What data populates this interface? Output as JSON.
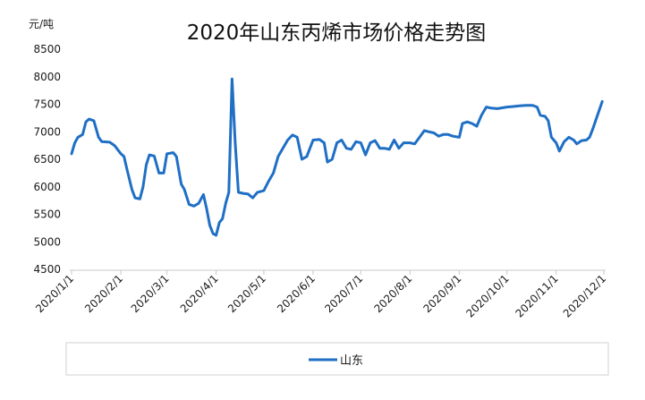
{
  "chart_data": {
    "type": "line",
    "title": "2020年山东丙烯市场价格走势图",
    "ylabel": "元/吨",
    "xlabel": "",
    "ylim": [
      4500,
      8500
    ],
    "yticks": [
      4500,
      5000,
      5500,
      6000,
      6500,
      7000,
      7500,
      8000,
      8500
    ],
    "xlim": [
      "2020-01-01",
      "2020-12-01"
    ],
    "x_tick_dates": [
      "2020-01-01",
      "2020-02-01",
      "2020-03-01",
      "2020-04-01",
      "2020-05-01",
      "2020-06-01",
      "2020-07-01",
      "2020-08-01",
      "2020-09-01",
      "2020-10-01",
      "2020-11-01",
      "2020-12-01"
    ],
    "x_tick_labels": [
      "2020/1/1",
      "2020/2/1",
      "2020/3/1",
      "2020/4/1",
      "2020/5/1",
      "2020/6/1",
      "2020/7/1",
      "2020/8/1",
      "2020/9/1",
      "2020/10/1",
      "2020/11/1",
      "2020/12/1"
    ],
    "grid": false,
    "legend_position": "bottom",
    "series": [
      {
        "name": "山东",
        "color": "#1f6fc5",
        "points": [
          [
            "2020-01-01",
            6600
          ],
          [
            "2020-01-03",
            6800
          ],
          [
            "2020-01-05",
            6900
          ],
          [
            "2020-01-08",
            6950
          ],
          [
            "2020-01-10",
            7180
          ],
          [
            "2020-01-12",
            7230
          ],
          [
            "2020-01-15",
            7200
          ],
          [
            "2020-01-18",
            6900
          ],
          [
            "2020-01-20",
            6820
          ],
          [
            "2020-01-25",
            6810
          ],
          [
            "2020-01-28",
            6750
          ],
          [
            "2020-02-01",
            6600
          ],
          [
            "2020-02-03",
            6550
          ],
          [
            "2020-02-05",
            6300
          ],
          [
            "2020-02-08",
            5950
          ],
          [
            "2020-02-10",
            5800
          ],
          [
            "2020-02-13",
            5780
          ],
          [
            "2020-02-15",
            6000
          ],
          [
            "2020-02-17",
            6400
          ],
          [
            "2020-02-19",
            6580
          ],
          [
            "2020-02-22",
            6560
          ],
          [
            "2020-02-25",
            6250
          ],
          [
            "2020-02-28",
            6250
          ],
          [
            "2020-03-01",
            6600
          ],
          [
            "2020-03-05",
            6620
          ],
          [
            "2020-03-07",
            6550
          ],
          [
            "2020-03-10",
            6050
          ],
          [
            "2020-03-12",
            5950
          ],
          [
            "2020-03-15",
            5680
          ],
          [
            "2020-03-18",
            5650
          ],
          [
            "2020-03-21",
            5700
          ],
          [
            "2020-03-24",
            5860
          ],
          [
            "2020-03-26",
            5600
          ],
          [
            "2020-03-28",
            5300
          ],
          [
            "2020-03-30",
            5150
          ],
          [
            "2020-04-01",
            5120
          ],
          [
            "2020-04-03",
            5350
          ],
          [
            "2020-04-05",
            5420
          ],
          [
            "2020-04-07",
            5700
          ],
          [
            "2020-04-09",
            5900
          ],
          [
            "2020-04-11",
            7960
          ],
          [
            "2020-04-13",
            6800
          ],
          [
            "2020-04-15",
            5900
          ],
          [
            "2020-04-18",
            5880
          ],
          [
            "2020-04-21",
            5870
          ],
          [
            "2020-04-24",
            5800
          ],
          [
            "2020-04-27",
            5900
          ],
          [
            "2020-05-01",
            5930
          ],
          [
            "2020-05-04",
            6100
          ],
          [
            "2020-05-07",
            6250
          ],
          [
            "2020-05-10",
            6550
          ],
          [
            "2020-05-13",
            6700
          ],
          [
            "2020-05-16",
            6850
          ],
          [
            "2020-05-19",
            6940
          ],
          [
            "2020-05-22",
            6900
          ],
          [
            "2020-05-25",
            6500
          ],
          [
            "2020-05-28",
            6550
          ],
          [
            "2020-06-01",
            6850
          ],
          [
            "2020-06-05",
            6860
          ],
          [
            "2020-06-08",
            6800
          ],
          [
            "2020-06-10",
            6450
          ],
          [
            "2020-06-13",
            6500
          ],
          [
            "2020-06-16",
            6800
          ],
          [
            "2020-06-19",
            6850
          ],
          [
            "2020-06-22",
            6700
          ],
          [
            "2020-06-25",
            6680
          ],
          [
            "2020-06-28",
            6820
          ],
          [
            "2020-07-01",
            6800
          ],
          [
            "2020-07-04",
            6580
          ],
          [
            "2020-07-07",
            6800
          ],
          [
            "2020-07-10",
            6840
          ],
          [
            "2020-07-13",
            6700
          ],
          [
            "2020-07-16",
            6700
          ],
          [
            "2020-07-19",
            6680
          ],
          [
            "2020-07-22",
            6850
          ],
          [
            "2020-07-25",
            6700
          ],
          [
            "2020-07-28",
            6800
          ],
          [
            "2020-08-01",
            6800
          ],
          [
            "2020-08-04",
            6780
          ],
          [
            "2020-08-07",
            6900
          ],
          [
            "2020-08-10",
            7020
          ],
          [
            "2020-08-13",
            7000
          ],
          [
            "2020-08-16",
            6980
          ],
          [
            "2020-08-19",
            6920
          ],
          [
            "2020-08-22",
            6950
          ],
          [
            "2020-08-25",
            6950
          ],
          [
            "2020-08-28",
            6920
          ],
          [
            "2020-09-01",
            6900
          ],
          [
            "2020-09-03",
            7150
          ],
          [
            "2020-09-06",
            7180
          ],
          [
            "2020-09-09",
            7150
          ],
          [
            "2020-09-12",
            7100
          ],
          [
            "2020-09-15",
            7300
          ],
          [
            "2020-09-18",
            7450
          ],
          [
            "2020-09-21",
            7430
          ],
          [
            "2020-09-25",
            7420
          ],
          [
            "2020-10-01",
            7450
          ],
          [
            "2020-10-05",
            7460
          ],
          [
            "2020-10-09",
            7470
          ],
          [
            "2020-10-13",
            7480
          ],
          [
            "2020-10-17",
            7480
          ],
          [
            "2020-10-20",
            7450
          ],
          [
            "2020-10-22",
            7300
          ],
          [
            "2020-10-25",
            7280
          ],
          [
            "2020-10-27",
            7200
          ],
          [
            "2020-10-29",
            6900
          ],
          [
            "2020-11-01",
            6800
          ],
          [
            "2020-11-03",
            6650
          ],
          [
            "2020-11-06",
            6820
          ],
          [
            "2020-11-09",
            6900
          ],
          [
            "2020-11-12",
            6850
          ],
          [
            "2020-11-14",
            6780
          ],
          [
            "2020-11-17",
            6840
          ],
          [
            "2020-11-20",
            6850
          ],
          [
            "2020-11-22",
            6900
          ],
          [
            "2020-11-24",
            7050
          ],
          [
            "2020-11-27",
            7300
          ],
          [
            "2020-11-30",
            7550
          ]
        ]
      }
    ]
  }
}
